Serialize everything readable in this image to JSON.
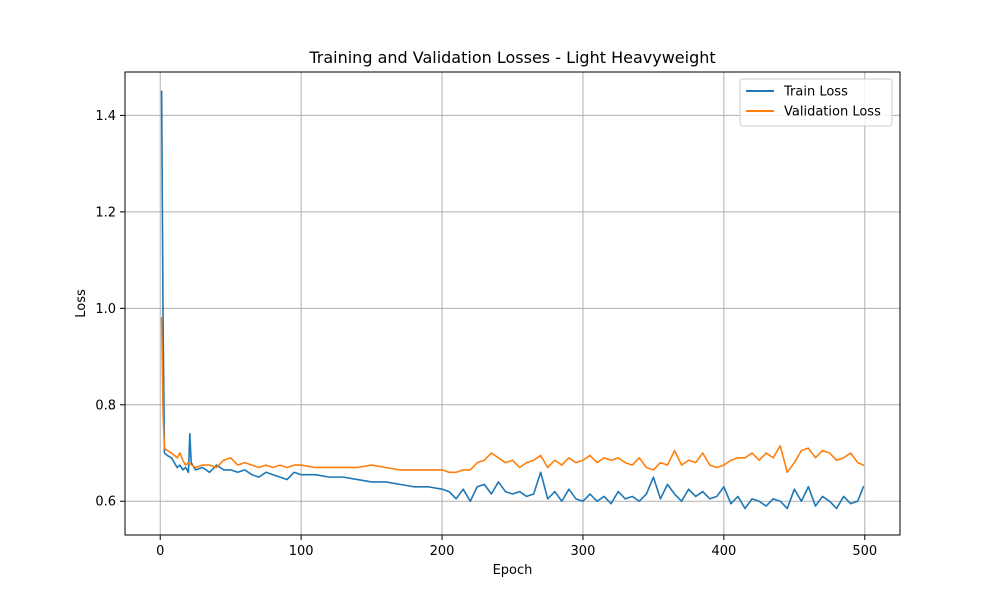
{
  "chart_data": {
    "type": "line",
    "title": "Training and Validation Losses - Light Heavyweight",
    "xlabel": "Epoch",
    "ylabel": "Loss",
    "xlim": [
      -25,
      525
    ],
    "ylim": [
      0.53,
      1.49
    ],
    "xticks": [
      0,
      100,
      200,
      300,
      400,
      500
    ],
    "yticks": [
      0.6,
      0.8,
      1.0,
      1.2,
      1.4
    ],
    "xtick_labels": [
      "0",
      "100",
      "200",
      "300",
      "400",
      "500"
    ],
    "ytick_labels": [
      "0.6",
      "0.8",
      "1.0",
      "1.2",
      "1.4"
    ],
    "grid": true,
    "legend_position": "upper right",
    "series": [
      {
        "name": "Train Loss",
        "color": "#1f77b4",
        "x": [
          1,
          2,
          3,
          5,
          8,
          10,
          12,
          14,
          16,
          18,
          20,
          21,
          22,
          25,
          30,
          35,
          40,
          45,
          50,
          55,
          60,
          65,
          70,
          75,
          80,
          85,
          90,
          95,
          100,
          110,
          120,
          130,
          140,
          150,
          160,
          170,
          180,
          190,
          200,
          205,
          210,
          215,
          220,
          225,
          230,
          235,
          240,
          245,
          250,
          255,
          260,
          265,
          270,
          275,
          280,
          285,
          290,
          295,
          300,
          305,
          310,
          315,
          320,
          325,
          330,
          335,
          340,
          345,
          350,
          355,
          360,
          365,
          370,
          375,
          380,
          385,
          390,
          395,
          400,
          405,
          410,
          415,
          420,
          425,
          430,
          435,
          440,
          445,
          450,
          455,
          460,
          465,
          470,
          475,
          480,
          485,
          490,
          495,
          499
        ],
        "y": [
          1.45,
          0.98,
          0.7,
          0.695,
          0.69,
          0.68,
          0.67,
          0.675,
          0.665,
          0.67,
          0.66,
          0.74,
          0.68,
          0.665,
          0.67,
          0.66,
          0.675,
          0.665,
          0.665,
          0.66,
          0.665,
          0.655,
          0.65,
          0.66,
          0.655,
          0.65,
          0.645,
          0.66,
          0.655,
          0.655,
          0.65,
          0.65,
          0.645,
          0.64,
          0.64,
          0.635,
          0.63,
          0.63,
          0.625,
          0.62,
          0.605,
          0.625,
          0.6,
          0.63,
          0.635,
          0.615,
          0.64,
          0.62,
          0.615,
          0.62,
          0.61,
          0.615,
          0.66,
          0.605,
          0.62,
          0.6,
          0.625,
          0.605,
          0.6,
          0.615,
          0.6,
          0.61,
          0.595,
          0.62,
          0.605,
          0.61,
          0.6,
          0.615,
          0.65,
          0.605,
          0.635,
          0.615,
          0.6,
          0.625,
          0.61,
          0.62,
          0.605,
          0.61,
          0.63,
          0.595,
          0.61,
          0.585,
          0.605,
          0.6,
          0.59,
          0.605,
          0.6,
          0.585,
          0.625,
          0.6,
          0.63,
          0.59,
          0.61,
          0.6,
          0.585,
          0.61,
          0.595,
          0.6,
          0.63
        ]
      },
      {
        "name": "Validation Loss",
        "color": "#ff7f0e",
        "x": [
          1,
          2,
          3,
          5,
          8,
          10,
          12,
          14,
          16,
          18,
          20,
          25,
          30,
          35,
          40,
          45,
          50,
          55,
          60,
          65,
          70,
          75,
          80,
          85,
          90,
          95,
          100,
          110,
          120,
          130,
          140,
          150,
          160,
          170,
          180,
          190,
          200,
          205,
          210,
          215,
          220,
          225,
          230,
          235,
          240,
          245,
          250,
          255,
          260,
          265,
          270,
          275,
          280,
          285,
          290,
          295,
          300,
          305,
          310,
          315,
          320,
          325,
          330,
          335,
          340,
          345,
          350,
          355,
          360,
          365,
          370,
          375,
          380,
          385,
          390,
          395,
          400,
          405,
          410,
          415,
          420,
          425,
          430,
          435,
          440,
          445,
          450,
          455,
          460,
          465,
          470,
          475,
          480,
          485,
          490,
          495,
          499
        ],
        "y": [
          0.98,
          0.78,
          0.71,
          0.705,
          0.7,
          0.695,
          0.69,
          0.7,
          0.685,
          0.675,
          0.68,
          0.67,
          0.675,
          0.675,
          0.67,
          0.685,
          0.69,
          0.675,
          0.68,
          0.675,
          0.67,
          0.675,
          0.67,
          0.675,
          0.67,
          0.675,
          0.675,
          0.67,
          0.67,
          0.67,
          0.67,
          0.675,
          0.67,
          0.665,
          0.665,
          0.665,
          0.665,
          0.66,
          0.66,
          0.665,
          0.665,
          0.68,
          0.685,
          0.7,
          0.69,
          0.68,
          0.685,
          0.67,
          0.68,
          0.685,
          0.695,
          0.67,
          0.685,
          0.675,
          0.69,
          0.68,
          0.685,
          0.695,
          0.68,
          0.69,
          0.685,
          0.69,
          0.68,
          0.675,
          0.69,
          0.67,
          0.665,
          0.68,
          0.675,
          0.705,
          0.675,
          0.685,
          0.68,
          0.7,
          0.675,
          0.67,
          0.675,
          0.685,
          0.69,
          0.69,
          0.7,
          0.685,
          0.7,
          0.69,
          0.715,
          0.66,
          0.68,
          0.705,
          0.71,
          0.69,
          0.705,
          0.7,
          0.685,
          0.69,
          0.7,
          0.68,
          0.675
        ]
      }
    ]
  }
}
